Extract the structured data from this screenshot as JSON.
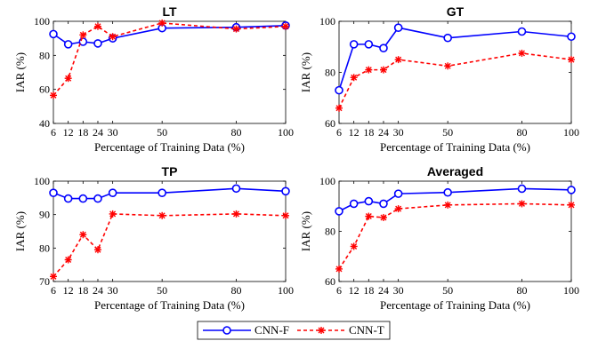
{
  "chart_data": [
    {
      "type": "line",
      "title": "LT",
      "xlabel": "Percentage of Training Data (%)",
      "ylabel": "IAR (%)",
      "x": [
        6,
        12,
        18,
        24,
        30,
        50,
        80,
        100
      ],
      "xticks": [
        "6",
        "12",
        "18",
        "24",
        "30",
        "50",
        "80",
        "100"
      ],
      "ylim": [
        40,
        100
      ],
      "yticks": [
        40,
        60,
        80,
        100
      ],
      "ytick_labels": [
        "40",
        "60",
        "80",
        "100"
      ],
      "grid": false,
      "series": [
        {
          "name": "CNN-F",
          "color": "#0000ff",
          "values": [
            92.5,
            86.5,
            88,
            87,
            90,
            96,
            96.5,
            97.5
          ]
        },
        {
          "name": "CNN-T",
          "color": "#ff0000",
          "values": [
            56.5,
            66.5,
            92,
            97,
            91,
            99,
            95.5,
            97
          ]
        }
      ]
    },
    {
      "type": "line",
      "title": "GT",
      "xlabel": "Percentage of Training Data (%)",
      "ylabel": "IAR (%)",
      "x": [
        6,
        12,
        18,
        24,
        30,
        50,
        80,
        100
      ],
      "xticks": [
        "6",
        "12",
        "18",
        "24",
        "30",
        "50",
        "80",
        "100"
      ],
      "ylim": [
        60,
        100
      ],
      "yticks": [
        60,
        80,
        100
      ],
      "ytick_labels": [
        "60",
        "80",
        "100"
      ],
      "grid": false,
      "series": [
        {
          "name": "CNN-F",
          "color": "#0000ff",
          "values": [
            73,
            91,
            91,
            89.5,
            97.5,
            93.5,
            96,
            94
          ]
        },
        {
          "name": "CNN-T",
          "color": "#ff0000",
          "values": [
            66,
            78,
            81,
            81,
            85,
            82.5,
            87.5,
            85
          ]
        }
      ]
    },
    {
      "type": "line",
      "title": "TP",
      "xlabel": "Percentage of Training Data (%)",
      "ylabel": "IAR (%)",
      "x": [
        6,
        12,
        18,
        24,
        30,
        50,
        80,
        100
      ],
      "xticks": [
        "6",
        "12",
        "18",
        "24",
        "30",
        "50",
        "80",
        "100"
      ],
      "ylim": [
        70,
        100
      ],
      "yticks": [
        70,
        80,
        90,
        100
      ],
      "ytick_labels": [
        "70",
        "80",
        "90",
        "100"
      ],
      "grid": false,
      "series": [
        {
          "name": "CNN-F",
          "color": "#0000ff",
          "values": [
            96.5,
            94.8,
            94.8,
            94.8,
            96.5,
            96.5,
            97.8,
            97
          ]
        },
        {
          "name": "CNN-T",
          "color": "#ff0000",
          "values": [
            71.5,
            76.5,
            84,
            79.5,
            90.2,
            89.7,
            90.2,
            89.7
          ]
        }
      ]
    },
    {
      "type": "line",
      "title": "Averaged",
      "xlabel": "Percentage of Training Data (%)",
      "ylabel": "IAR (%)",
      "x": [
        6,
        12,
        18,
        24,
        30,
        50,
        80,
        100
      ],
      "xticks": [
        "6",
        "12",
        "18",
        "24",
        "30",
        "50",
        "80",
        "100"
      ],
      "ylim": [
        60,
        100
      ],
      "yticks": [
        60,
        80,
        100
      ],
      "ytick_labels": [
        "60",
        "80",
        "100"
      ],
      "grid": false,
      "series": [
        {
          "name": "CNN-F",
          "color": "#0000ff",
          "values": [
            88,
            91,
            92,
            91,
            95,
            95.5,
            97,
            96.5
          ]
        },
        {
          "name": "CNN-T",
          "color": "#ff0000",
          "values": [
            65,
            74,
            86,
            85.5,
            89,
            90.5,
            91,
            90.5
          ]
        }
      ]
    }
  ],
  "legend": {
    "placement": "bottom-center",
    "items": [
      {
        "label": "CNN-F",
        "color": "#0000ff",
        "marker": "circle",
        "line": "solid"
      },
      {
        "label": "CNN-T",
        "color": "#ff0000",
        "marker": "star",
        "line": "dashed"
      }
    ]
  }
}
